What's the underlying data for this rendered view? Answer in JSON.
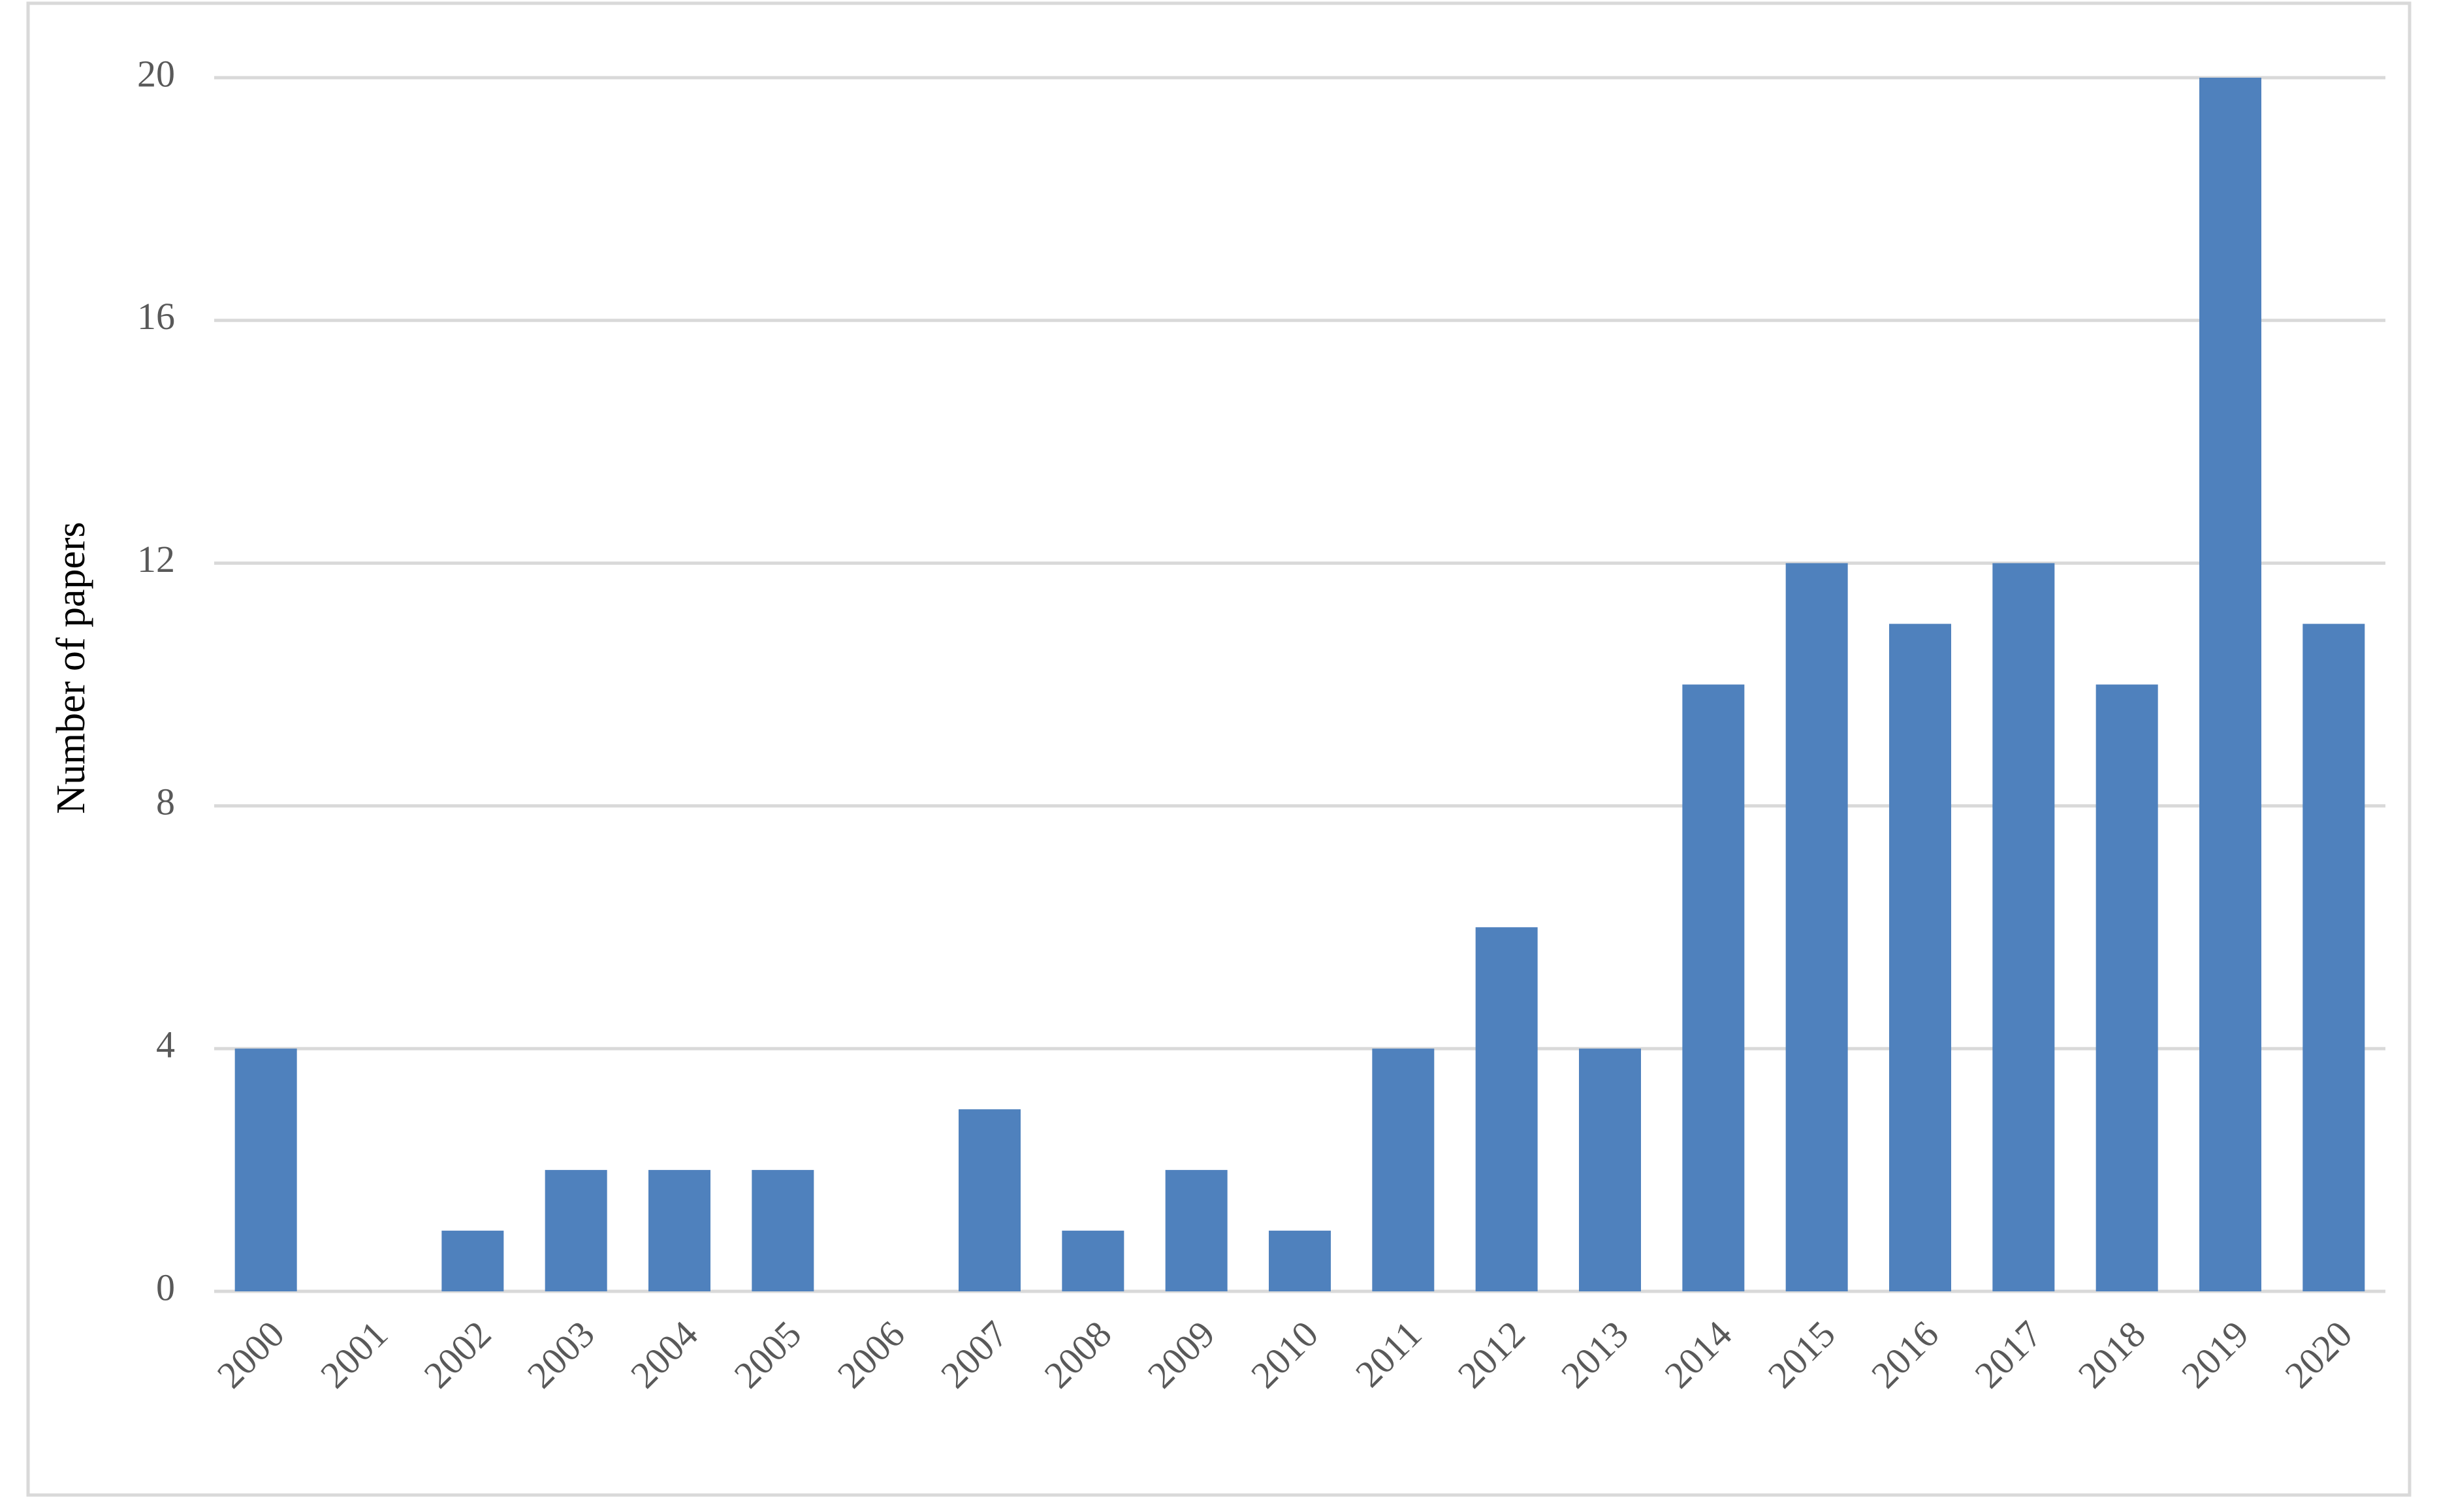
{
  "chart_data": {
    "type": "bar",
    "ylabel": "Number of papers",
    "categories": [
      "2000",
      "2001",
      "2002",
      "2003",
      "2004",
      "2005",
      "2006",
      "2007",
      "2008",
      "2009",
      "2010",
      "2011",
      "2012",
      "2013",
      "2014",
      "2015",
      "2016",
      "2017",
      "2018",
      "2019",
      "2020"
    ],
    "values": [
      4,
      0,
      1,
      2,
      2,
      2,
      0,
      3,
      1,
      2,
      1,
      4,
      6,
      4,
      10,
      12,
      11,
      12,
      10,
      20,
      11
    ],
    "color": "#4f81bd",
    "ylim": [
      0,
      20
    ],
    "yticks": [
      0,
      4,
      8,
      12,
      16,
      20
    ],
    "grid": true
  }
}
